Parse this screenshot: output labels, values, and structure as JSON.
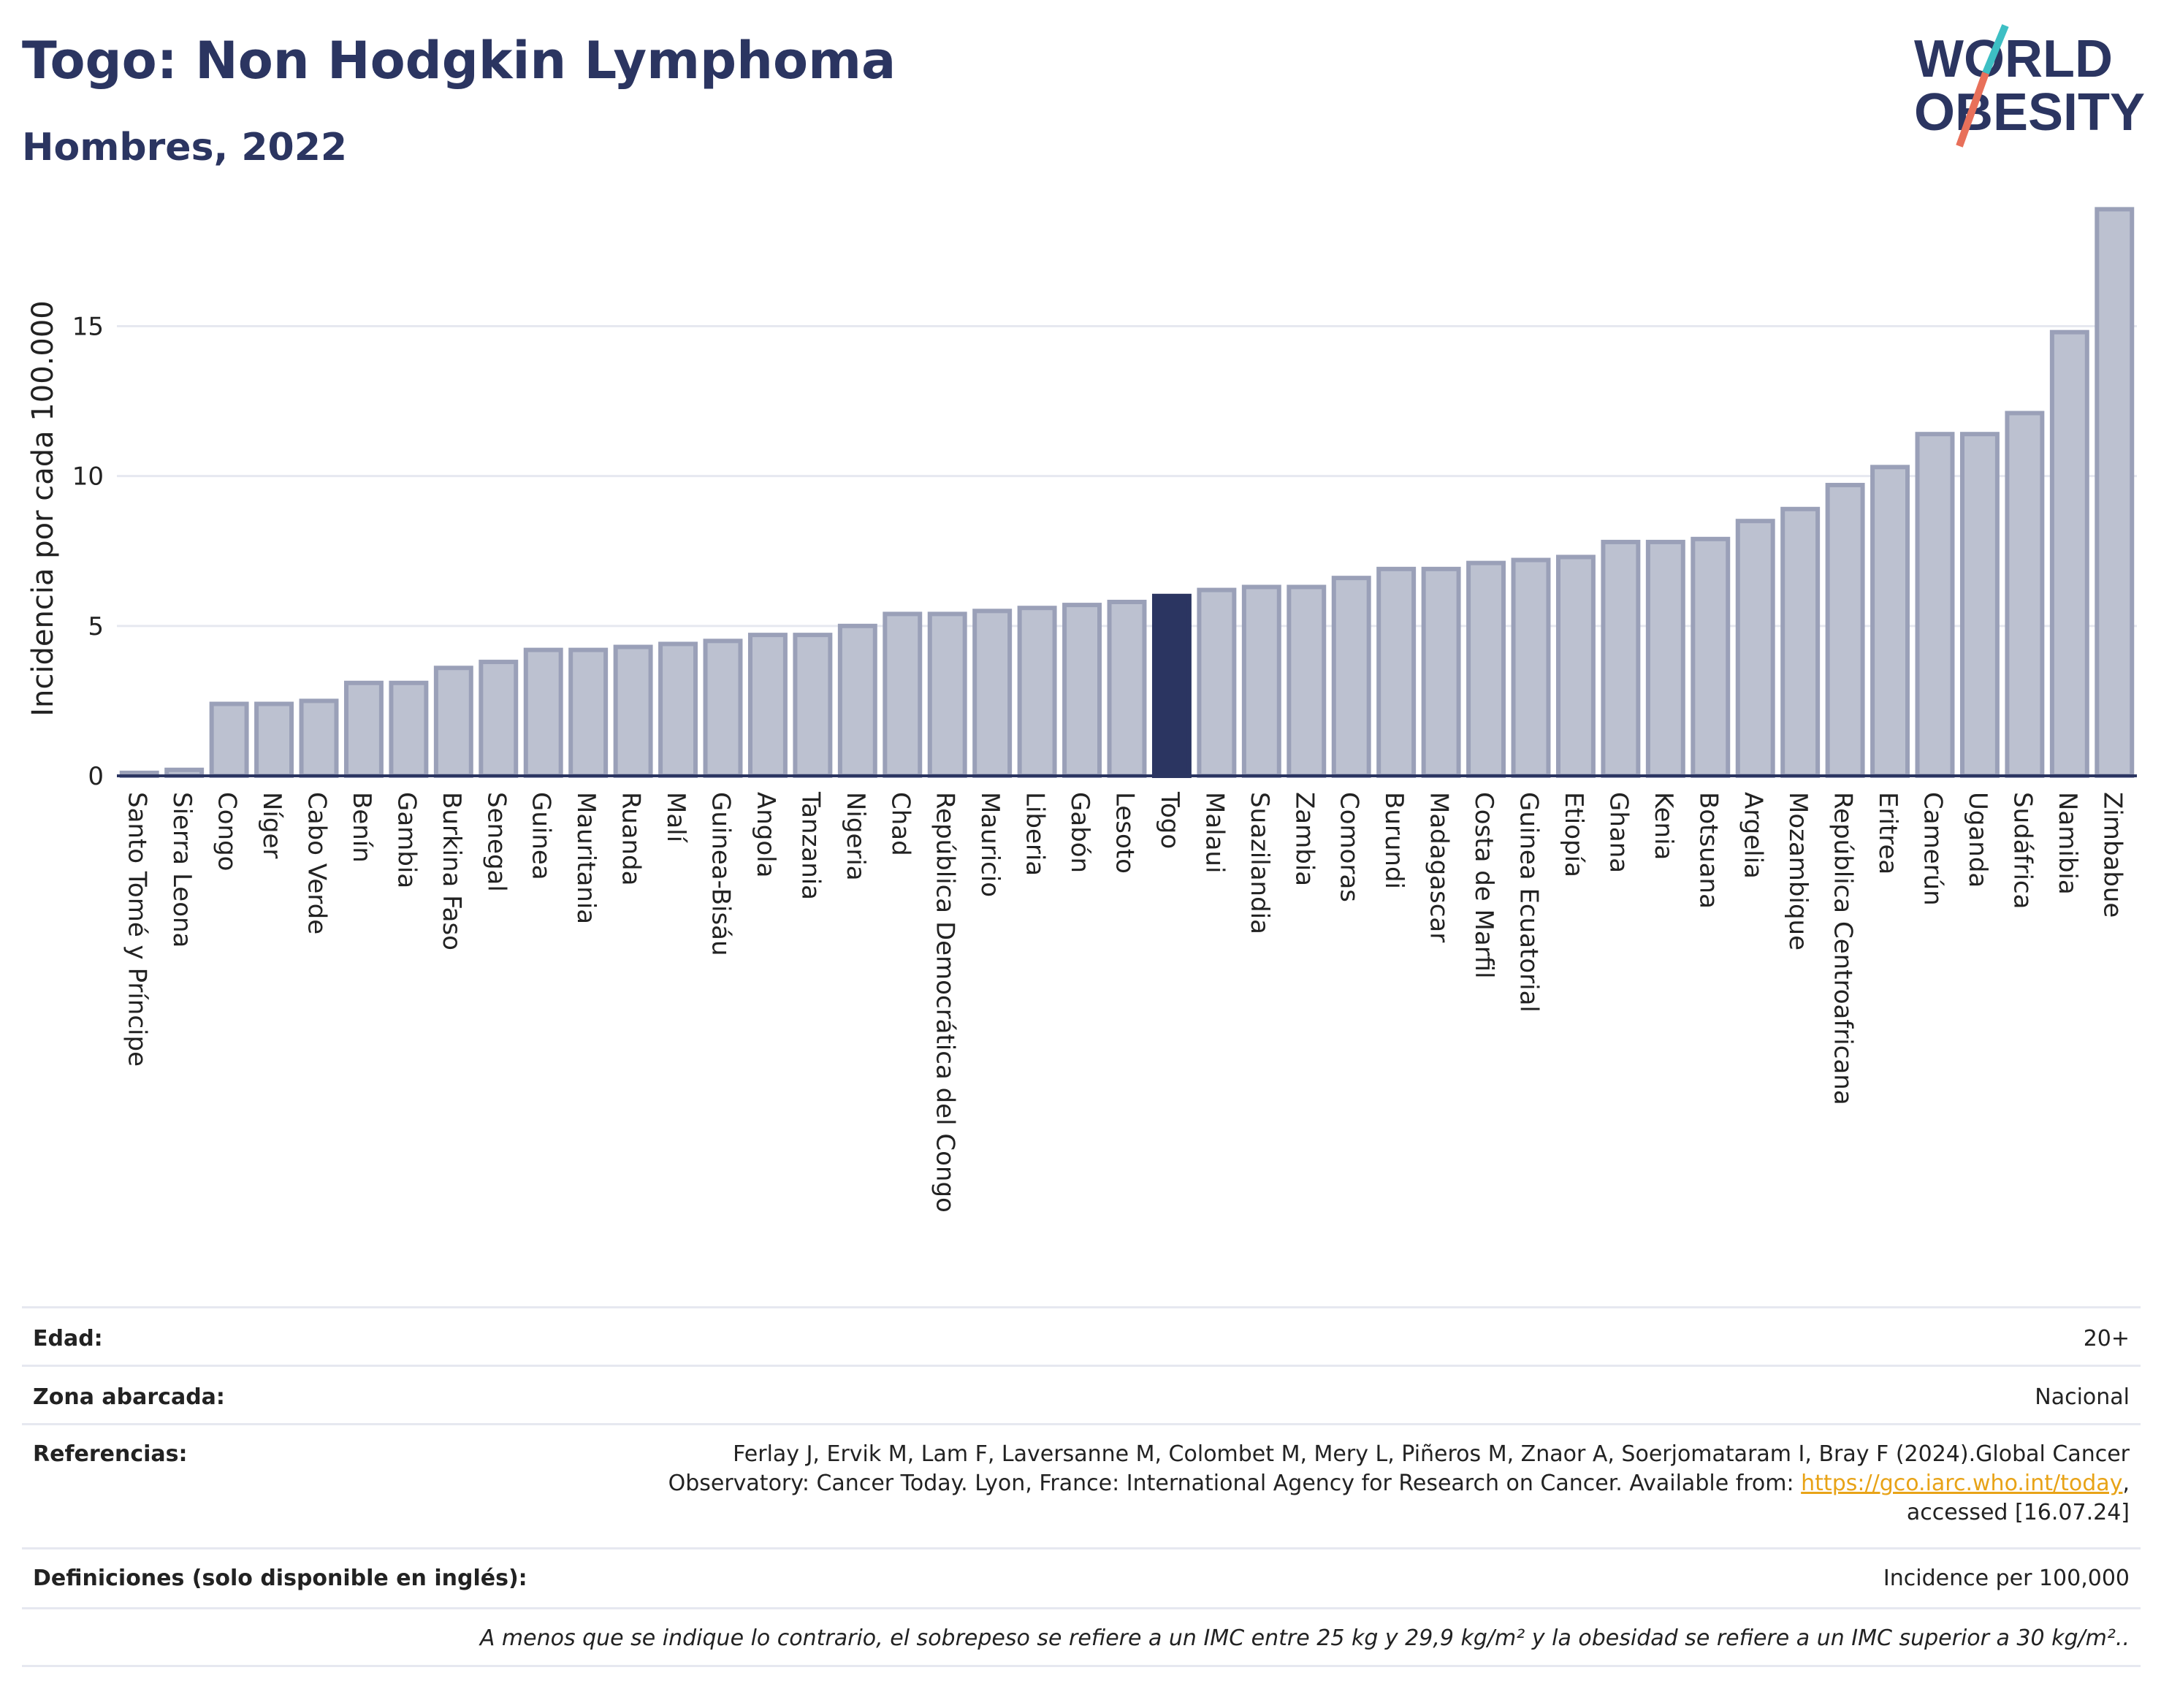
{
  "header": {
    "title": "Togo: Non Hodgkin Lymphoma",
    "subtitle": "Hombres, 2022",
    "logo_line1": "WORLD",
    "logo_line2": "OBESITY"
  },
  "colors": {
    "title": "#2b3561",
    "bar_default": "#bcc1d0",
    "bar_default_stroke": "#9aa0b8",
    "bar_highlight": "#2b3561",
    "link": "#e8a317",
    "logo_teal": "#3dbfc4",
    "logo_coral": "#e8705a"
  },
  "chart_data": {
    "type": "bar",
    "ylabel": "Incidencia por cada 100.000",
    "xlabel": "",
    "ylim": [
      0,
      19.3
    ],
    "yticks": [
      0,
      5,
      10,
      15
    ],
    "grid": true,
    "highlight": "Togo",
    "categories": [
      "Santo Tomé y Príncipe",
      "Sierra Leona",
      "Congo",
      "Níger",
      "Cabo Verde",
      "Benín",
      "Gambia",
      "Burkina Faso",
      "Senegal",
      "Guinea",
      "Mauritania",
      "Ruanda",
      "Malí",
      "Guinea-Bisáu",
      "Angola",
      "Tanzania",
      "Nigeria",
      "Chad",
      "República Democrática del Congo",
      "Mauricio",
      "Liberia",
      "Gabón",
      "Lesoto",
      "Togo",
      "Malaui",
      "Suazilandia",
      "Zambia",
      "Comoras",
      "Burundi",
      "Madagascar",
      "Costa de Marfil",
      "Guinea Ecuatorial",
      "Etiopía",
      "Ghana",
      "Kenia",
      "Botsuana",
      "Argelia",
      "Mozambique",
      "República Centroafricana",
      "Eritrea",
      "Camerún",
      "Uganda",
      "Sudáfrica",
      "Namibia",
      "Zimbabue"
    ],
    "values": [
      0.1,
      0.2,
      2.4,
      2.4,
      2.5,
      3.1,
      3.1,
      3.6,
      3.8,
      4.2,
      4.2,
      4.3,
      4.4,
      4.5,
      4.7,
      4.7,
      5.0,
      5.4,
      5.4,
      5.5,
      5.6,
      5.7,
      5.8,
      6.0,
      6.2,
      6.3,
      6.3,
      6.6,
      6.9,
      6.9,
      7.1,
      7.2,
      7.3,
      7.8,
      7.8,
      7.9,
      8.5,
      8.9,
      9.7,
      10.3,
      11.4,
      11.4,
      12.1,
      14.8,
      18.9
    ]
  },
  "info": {
    "age_label": "Edad:",
    "age_value": "20+",
    "area_label": "Zona abarcada:",
    "area_value": "Nacional",
    "refs_label": "Referencias:",
    "refs_line1": "Ferlay J, Ervik M, Lam F, Laversanne M, Colombet M, Mery L, Piñeros M, Znaor A, Soerjomataram I, Bray F (2024).Global Cancer",
    "refs_line2": "Observatory: Cancer Today. Lyon, France: International Agency for Research on Cancer. Available from: ",
    "refs_link": "https://gco.iarc.who.int/today",
    "refs_line2_end": ",",
    "refs_line3": "accessed [16.07.24]",
    "defs_label": "Definiciones (solo disponible en inglés):",
    "defs_value": "Incidence per 100,000",
    "footnote": "A menos que se indique lo contrario, el sobrepeso se refiere a un IMC entre 25 kg y 29,9 kg/m² y la obesidad se refiere a un IMC superior a 30 kg/m².."
  }
}
